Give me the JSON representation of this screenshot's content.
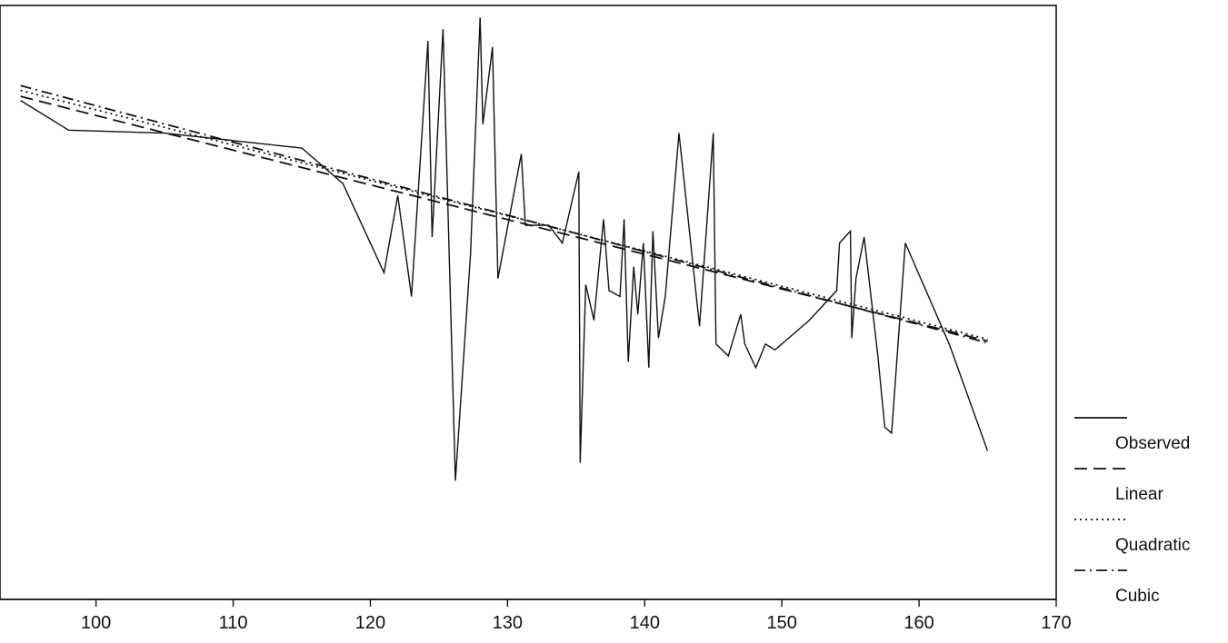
{
  "chart_data": {
    "type": "line",
    "xlim": [
      93,
      170
    ],
    "ylim": [
      0,
      100
    ],
    "xticks": [
      100,
      110,
      120,
      130,
      140,
      150,
      160,
      170
    ],
    "xtick_labels": [
      "100",
      "110",
      "120",
      "130",
      "140",
      "150",
      "160",
      "170"
    ],
    "grid": false,
    "legend_position": "right",
    "series": [
      {
        "name": "Observed",
        "style": "solid",
        "points": [
          [
            94.5,
            84
          ],
          [
            98,
            79
          ],
          [
            105,
            78.5
          ],
          [
            115,
            76
          ],
          [
            116,
            74
          ],
          [
            118,
            70
          ],
          [
            121,
            55
          ],
          [
            122,
            68
          ],
          [
            123,
            51
          ],
          [
            124.2,
            94
          ],
          [
            124.5,
            61
          ],
          [
            125.3,
            96
          ],
          [
            126.2,
            20
          ],
          [
            127.3,
            58
          ],
          [
            128,
            98
          ],
          [
            128.2,
            80
          ],
          [
            128.9,
            93
          ],
          [
            129.3,
            54
          ],
          [
            131,
            75
          ],
          [
            131.3,
            63
          ],
          [
            133,
            63
          ],
          [
            134,
            60
          ],
          [
            135.2,
            72
          ],
          [
            135.3,
            23
          ],
          [
            135.7,
            53
          ],
          [
            136.3,
            47
          ],
          [
            137,
            64
          ],
          [
            137.4,
            52
          ],
          [
            138.2,
            51
          ],
          [
            138.5,
            64
          ],
          [
            138.8,
            40
          ],
          [
            139.2,
            56
          ],
          [
            139.5,
            48
          ],
          [
            139.9,
            60
          ],
          [
            140.3,
            39
          ],
          [
            140.6,
            62
          ],
          [
            141,
            44
          ],
          [
            141.5,
            51
          ],
          [
            142.5,
            78.5
          ],
          [
            144,
            46
          ],
          [
            145,
            78.5
          ],
          [
            145.2,
            43
          ],
          [
            146.1,
            41
          ],
          [
            147,
            48
          ],
          [
            147.3,
            43
          ],
          [
            148.1,
            39
          ],
          [
            148.8,
            43
          ],
          [
            149.5,
            42
          ],
          [
            152,
            47
          ],
          [
            154,
            52
          ],
          [
            154.2,
            60
          ],
          [
            155,
            62
          ],
          [
            155.1,
            44
          ],
          [
            155.4,
            54
          ],
          [
            156,
            61
          ],
          [
            157,
            41
          ],
          [
            157.5,
            29
          ],
          [
            158,
            28
          ],
          [
            159,
            60
          ],
          [
            162.2,
            43
          ],
          [
            165,
            25
          ]
        ]
      },
      {
        "name": "Linear",
        "style": "dashed",
        "points": [
          [
            94.5,
            84.7
          ],
          [
            165,
            43.5
          ]
        ]
      },
      {
        "name": "Quadratic",
        "style": "dotted",
        "points": [
          [
            94.5,
            85.7
          ],
          [
            165,
            43.8
          ]
        ]
      },
      {
        "name": "Cubic",
        "style": "dash-dot",
        "points": [
          [
            94.5,
            86.5
          ],
          [
            165,
            43.2
          ]
        ]
      }
    ],
    "legend": [
      {
        "label": "Observed",
        "style": "solid"
      },
      {
        "label": "Linear",
        "style": "dashed"
      },
      {
        "label": "Quadratic",
        "style": "dotted"
      },
      {
        "label": "Cubic",
        "style": "dash-dot"
      }
    ]
  }
}
